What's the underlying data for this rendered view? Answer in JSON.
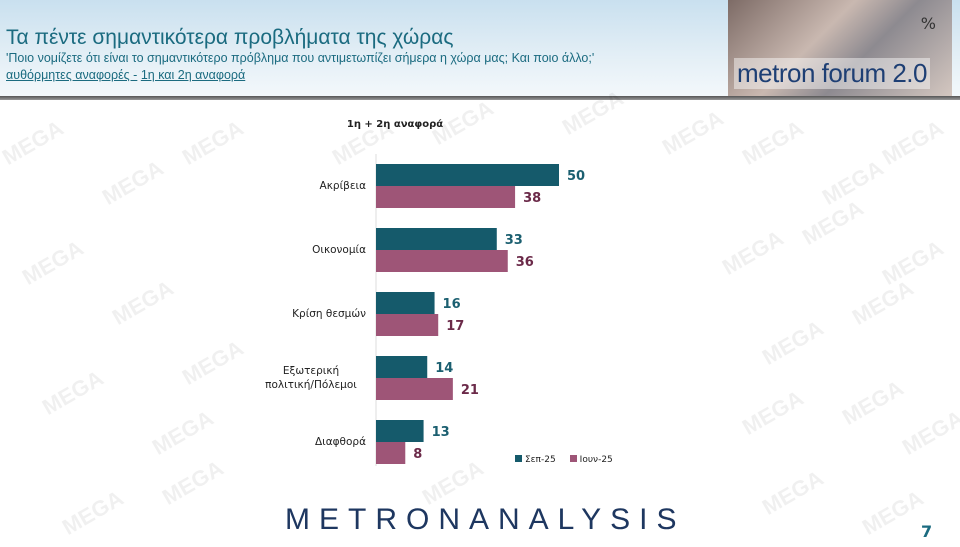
{
  "header": {
    "title": "Τα πέντε σημαντικότερα προβλήματα της χώρας",
    "subtitle": "'Ποιο νομίζετε ότι είναι το σημαντικότερο πρόβλημα που αντιμετωπίζει σήμερα η χώρα μας; Και ποιο άλλο;'",
    "note_a": "αυθόρμητες αναφορές -",
    "note_b": "1η και 2η αναφορά",
    "logo_text": "metron forum 2.0",
    "logo_symbol": "%"
  },
  "chart_data": {
    "type": "bar",
    "orientation": "horizontal",
    "title": "1η + 2η αναφορά",
    "categories": [
      "Ακρίβεια",
      "Οικονομία",
      "Κρίση θεσμών",
      "Εξωτερική πολιτική/Πόλεμοι",
      "Διαφθορά"
    ],
    "series": [
      {
        "name": "Σεπ-25",
        "color": "#155a6b",
        "values": [
          50,
          33,
          16,
          14,
          13
        ]
      },
      {
        "name": "Ιουν-25",
        "color": "#9e5577",
        "values": [
          38,
          36,
          17,
          21,
          8
        ]
      }
    ],
    "legend": "bottom-right",
    "xlim": [
      0,
      60
    ]
  },
  "footer": {
    "brand": "METRONANALYSIS",
    "page": "7"
  },
  "watermark": "MEGA"
}
